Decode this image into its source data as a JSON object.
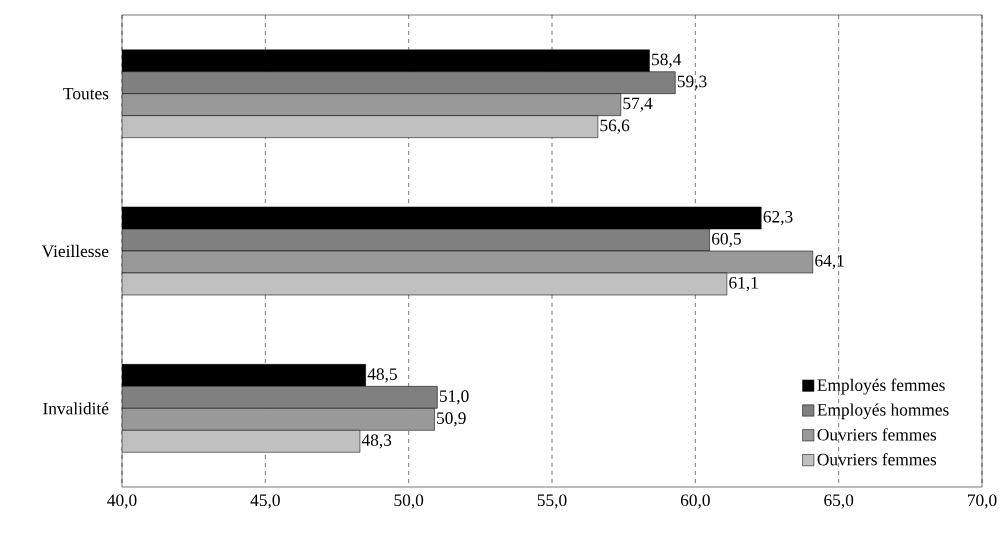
{
  "chart_data": {
    "type": "bar",
    "orientation": "horizontal",
    "categories": [
      "Toutes",
      "Vieillesse",
      "Invalidité"
    ],
    "series": [
      {
        "name": "Employés femmes",
        "color": "#000000",
        "values": [
          58.4,
          62.3,
          48.5
        ],
        "value_labels": [
          "58,4",
          "62,3",
          "48,5"
        ]
      },
      {
        "name": "Employés hommes",
        "color": "#808080",
        "values": [
          59.3,
          60.5,
          51.0
        ],
        "value_labels": [
          "59,3",
          "60,5",
          "51,0"
        ]
      },
      {
        "name": "Ouvriers femmes",
        "color": "#999999",
        "values": [
          57.4,
          64.1,
          50.9
        ],
        "value_labels": [
          "57,4",
          "64,1",
          "50,9"
        ]
      },
      {
        "name": "Ouvriers femmes",
        "color": "#c0c0c0",
        "values": [
          56.6,
          61.1,
          48.3
        ],
        "value_labels": [
          "56,6",
          "61,1",
          "48,3"
        ]
      }
    ],
    "xlim": [
      40,
      70
    ],
    "xticks": [
      {
        "value": 40,
        "label": "40,0"
      },
      {
        "value": 45,
        "label": "45,0"
      },
      {
        "value": 50,
        "label": "50,0"
      },
      {
        "value": 55,
        "label": "55,0"
      },
      {
        "value": 60,
        "label": "60,0"
      },
      {
        "value": 65,
        "label": "65,0"
      },
      {
        "value": 70,
        "label": "70,0"
      }
    ],
    "grid": "x",
    "legend": "bottom right"
  }
}
